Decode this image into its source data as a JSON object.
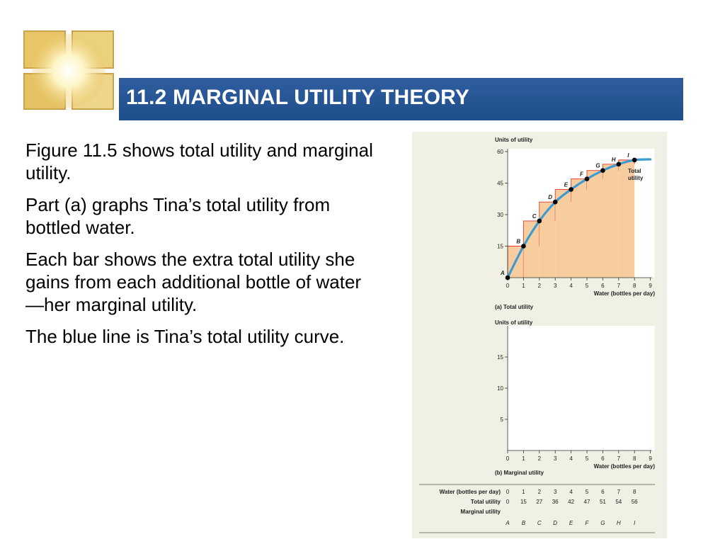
{
  "slide": {
    "title": "11.2 MARGINAL UTILITY THEORY",
    "paragraphs": [
      "Figure 11.5 shows total utility and marginal utility.",
      "Part (a) graphs Tina’s total utility from bottled water.",
      "Each bar shows the extra total utility she gains from each additional bottle of water—her marginal utility.",
      "The blue line is Tina’s total utility curve."
    ]
  },
  "colors": {
    "title_bar": "#1f4e8c",
    "figure_background": "#f1f0e4",
    "bar_fill": "#f7cc9e",
    "bar_edge": "#e63a2a",
    "curve": "#3b9bd2",
    "point": "#000000"
  },
  "chart_data": [
    {
      "type": "line",
      "ylabel": "Units of utility",
      "xlabel": "Water (bottles per day)",
      "caption": "(a) Total utility",
      "x_ticks": [
        0,
        1,
        2,
        3,
        4,
        5,
        6,
        7,
        8,
        9
      ],
      "y_ticks": [
        15,
        30,
        45,
        60
      ],
      "xlim": [
        0,
        9
      ],
      "ylim": [
        0,
        60
      ],
      "series": [
        {
          "name": "Total utility",
          "x": [
            0,
            1,
            2,
            3,
            4,
            5,
            6,
            7,
            8
          ],
          "y": [
            0,
            15,
            27,
            36,
            42,
            47,
            51,
            54,
            56
          ],
          "point_labels": [
            "A",
            "B",
            "C",
            "D",
            "E",
            "F",
            "G",
            "H",
            "I"
          ]
        }
      ],
      "bars": {
        "x": [
          1,
          2,
          3,
          4,
          5,
          6,
          7,
          8
        ],
        "top": [
          15,
          27,
          36,
          42,
          47,
          51,
          54,
          56
        ],
        "base": [
          0,
          15,
          27,
          36,
          42,
          47,
          51,
          54
        ]
      },
      "curve_label": "Total\nutility"
    },
    {
      "type": "bar",
      "ylabel": "Units of utility",
      "xlabel": "Water (bottles per day)",
      "caption": "(b) Marginal utility",
      "x_ticks": [
        0,
        1,
        2,
        3,
        4,
        5,
        6,
        7,
        8,
        9
      ],
      "y_ticks": [
        5,
        10,
        15
      ],
      "xlim": [
        0,
        9
      ],
      "ylim": [
        0,
        20
      ],
      "values": []
    },
    {
      "type": "table",
      "rows": [
        {
          "label": "Water (bottles per day)",
          "values": [
            "0",
            "1",
            "2",
            "3",
            "4",
            "5",
            "6",
            "7",
            "8"
          ]
        },
        {
          "label": "Total utility",
          "values": [
            "0",
            "15",
            "27",
            "36",
            "42",
            "47",
            "51",
            "54",
            "56"
          ]
        },
        {
          "label": "Marginal utility",
          "values": []
        },
        {
          "label": "",
          "values": [
            "A",
            "B",
            "C",
            "D",
            "E",
            "F",
            "G",
            "H",
            "I"
          ]
        }
      ]
    }
  ]
}
